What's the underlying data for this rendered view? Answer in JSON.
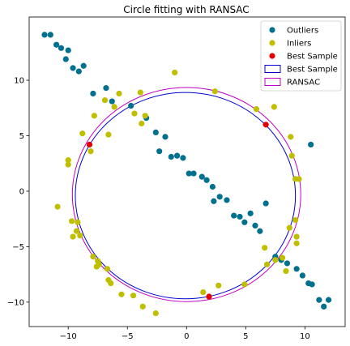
{
  "chart_data": {
    "type": "scatter",
    "title": "Circle fitting with RANSAC",
    "xlabel": "",
    "ylabel": "",
    "xlim": [
      -13.3,
      13.4
    ],
    "ylim": [
      -12.2,
      15.7
    ],
    "xticks": [
      -10,
      -5,
      0,
      5,
      10
    ],
    "yticks": [
      -10,
      -5,
      0,
      5,
      10
    ],
    "grid": false,
    "legend_position": "top-right",
    "series": [
      {
        "name": "Outliers",
        "kind": "points",
        "color": "#00708f",
        "points": [
          [
            -12.0,
            14.1
          ],
          [
            -11.5,
            14.1
          ],
          [
            -11.0,
            13.2
          ],
          [
            -10.6,
            12.9
          ],
          [
            -10.0,
            12.7
          ],
          [
            -10.2,
            11.9
          ],
          [
            -9.6,
            11.1
          ],
          [
            -9.1,
            10.8
          ],
          [
            -8.7,
            11.3
          ],
          [
            -7.9,
            8.8
          ],
          [
            -6.8,
            9.3
          ],
          [
            -6.3,
            8.1
          ],
          [
            -4.7,
            7.7
          ],
          [
            -3.4,
            6.6
          ],
          [
            -2.6,
            5.3
          ],
          [
            -1.8,
            4.9
          ],
          [
            -2.3,
            3.6
          ],
          [
            -1.3,
            3.1
          ],
          [
            -0.8,
            3.2
          ],
          [
            -0.3,
            3.0
          ],
          [
            0.2,
            1.6
          ],
          [
            0.6,
            1.6
          ],
          [
            1.3,
            1.3
          ],
          [
            1.7,
            1.0
          ],
          [
            2.2,
            0.4
          ],
          [
            2.3,
            -0.9
          ],
          [
            2.8,
            -0.5
          ],
          [
            3.4,
            -0.8
          ],
          [
            4.0,
            -2.2
          ],
          [
            4.5,
            -2.3
          ],
          [
            4.9,
            -2.8
          ],
          [
            5.4,
            -2.0
          ],
          [
            5.8,
            -3.1
          ],
          [
            6.2,
            -3.6
          ],
          [
            6.7,
            -1.1
          ],
          [
            7.5,
            -5.9
          ],
          [
            8.0,
            -6.2
          ],
          [
            8.5,
            -6.5
          ],
          [
            9.3,
            -7.0
          ],
          [
            9.8,
            -7.6
          ],
          [
            10.3,
            -8.3
          ],
          [
            10.6,
            -8.4
          ],
          [
            11.2,
            -9.8
          ],
          [
            11.6,
            -10.4
          ],
          [
            12.0,
            -9.8
          ],
          [
            10.5,
            4.2
          ]
        ]
      },
      {
        "name": "Inliers",
        "kind": "points",
        "color": "#bfbf00",
        "points": [
          [
            -1.0,
            10.7
          ],
          [
            2.4,
            9.0
          ],
          [
            -3.9,
            8.9
          ],
          [
            -5.7,
            8.8
          ],
          [
            -6.9,
            8.2
          ],
          [
            -6.1,
            7.6
          ],
          [
            -4.4,
            7.0
          ],
          [
            -3.8,
            6.1
          ],
          [
            -3.5,
            6.8
          ],
          [
            -7.8,
            6.8
          ],
          [
            -6.6,
            5.1
          ],
          [
            -8.1,
            3.6
          ],
          [
            -8.8,
            5.2
          ],
          [
            -10.0,
            2.8
          ],
          [
            -10.0,
            2.4
          ],
          [
            -10.9,
            -1.4
          ],
          [
            -9.7,
            -2.7
          ],
          [
            -9.2,
            -2.8
          ],
          [
            -9.6,
            -4.1
          ],
          [
            -9.0,
            -4.0
          ],
          [
            -7.9,
            -5.9
          ],
          [
            -7.5,
            -6.3
          ],
          [
            -7.6,
            -6.8
          ],
          [
            -7.4,
            -6.6
          ],
          [
            -6.7,
            -7.0
          ],
          [
            -6.6,
            -8.0
          ],
          [
            -6.4,
            -8.3
          ],
          [
            -5.5,
            -9.3
          ],
          [
            -4.5,
            -9.4
          ],
          [
            -3.7,
            -10.4
          ],
          [
            -2.6,
            -11.0
          ],
          [
            1.4,
            -9.1
          ],
          [
            2.7,
            -8.5
          ],
          [
            4.9,
            -8.4
          ],
          [
            6.8,
            -6.6
          ],
          [
            6.6,
            -5.1
          ],
          [
            7.5,
            -6.2
          ],
          [
            8.7,
            -3.3
          ],
          [
            9.2,
            -2.6
          ],
          [
            9.3,
            -4.1
          ],
          [
            9.3,
            -4.7
          ],
          [
            9.5,
            1.1
          ],
          [
            9.2,
            1.1
          ],
          [
            8.9,
            3.2
          ],
          [
            8.8,
            4.9
          ],
          [
            7.4,
            7.6
          ],
          [
            5.9,
            7.4
          ],
          [
            8.4,
            -7.2
          ],
          [
            8.1,
            -6.0
          ],
          [
            -9.3,
            -3.6
          ]
        ]
      },
      {
        "name": "Best Sample",
        "kind": "points",
        "color": "#e50000",
        "points": [
          [
            -8.2,
            4.2
          ],
          [
            6.7,
            6.0
          ],
          [
            1.9,
            -9.5
          ]
        ]
      },
      {
        "name": "Best Sample",
        "kind": "circle",
        "color": "#0000d0",
        "center": [
          -0.1,
          -0.4
        ],
        "radius": 9.3
      },
      {
        "name": "RANSAC",
        "kind": "circle",
        "color": "#c000c0",
        "center": [
          0.0,
          -0.3
        ],
        "radius": 9.65
      }
    ]
  }
}
